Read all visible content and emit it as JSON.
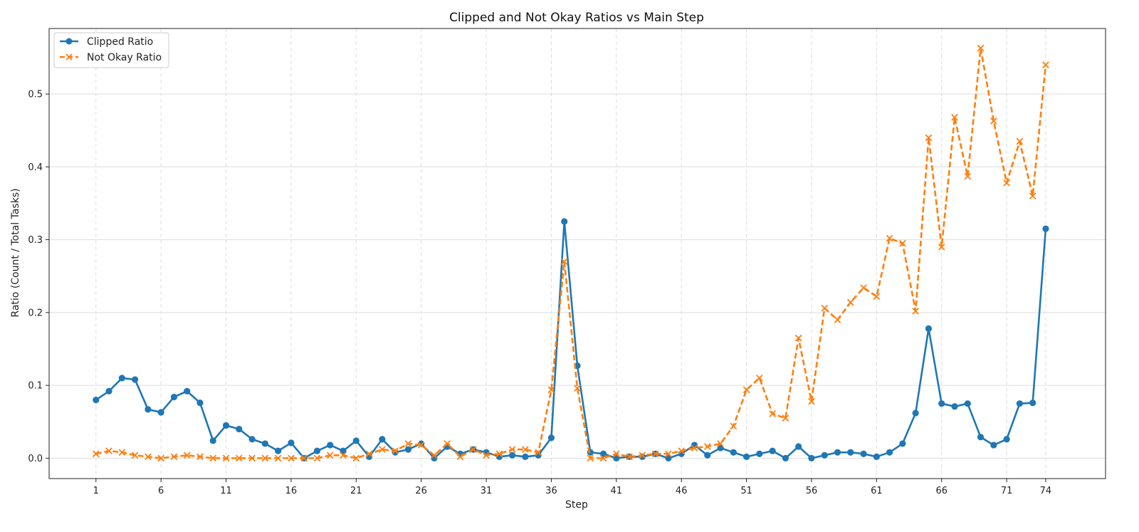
{
  "chart_data": {
    "type": "line",
    "title": "Clipped and Not Okay Ratios vs Main Step",
    "xlabel": "Step",
    "ylabel": "Ratio (Count / Total Tasks)",
    "xlim": [
      -2.6,
      78.6
    ],
    "ylim": [
      -0.028,
      0.59
    ],
    "x_ticks": [
      1,
      6,
      11,
      16,
      21,
      26,
      31,
      36,
      41,
      46,
      51,
      56,
      61,
      66,
      71,
      74
    ],
    "y_ticks": [
      0.0,
      0.1,
      0.2,
      0.3,
      0.4,
      0.5
    ],
    "grid": true,
    "legend_position": "upper-left",
    "x": [
      1,
      2,
      3,
      4,
      5,
      6,
      7,
      8,
      9,
      10,
      11,
      12,
      13,
      14,
      15,
      16,
      17,
      18,
      19,
      20,
      21,
      22,
      23,
      24,
      25,
      26,
      27,
      28,
      29,
      30,
      31,
      32,
      33,
      34,
      35,
      36,
      37,
      38,
      39,
      40,
      41,
      42,
      43,
      44,
      45,
      46,
      47,
      48,
      49,
      50,
      51,
      52,
      53,
      54,
      55,
      56,
      57,
      58,
      59,
      60,
      61,
      62,
      63,
      64,
      65,
      66,
      67,
      68,
      69,
      70,
      71,
      72,
      73,
      74
    ],
    "series": [
      {
        "name": "Clipped Ratio",
        "color": "#1f77b4",
        "marker": "circle",
        "linestyle": "solid",
        "values": [
          0.08,
          0.092,
          0.11,
          0.108,
          0.067,
          0.063,
          0.084,
          0.092,
          0.076,
          0.024,
          0.045,
          0.04,
          0.026,
          0.02,
          0.01,
          0.021,
          0.0,
          0.01,
          0.018,
          0.01,
          0.024,
          0.002,
          0.026,
          0.008,
          0.012,
          0.02,
          0.0,
          0.016,
          0.006,
          0.012,
          0.008,
          0.002,
          0.004,
          0.002,
          0.004,
          0.028,
          0.325,
          0.127,
          0.008,
          0.006,
          0.0,
          0.002,
          0.002,
          0.006,
          0.0,
          0.006,
          0.018,
          0.004,
          0.014,
          0.008,
          0.002,
          0.006,
          0.01,
          0.0,
          0.016,
          0.0,
          0.004,
          0.008,
          0.008,
          0.006,
          0.002,
          0.008,
          0.02,
          0.062,
          0.178,
          0.075,
          0.071,
          0.075,
          0.029,
          0.018,
          0.026,
          0.075,
          0.076,
          0.315
        ]
      },
      {
        "name": "Not Okay Ratio",
        "color": "#ff7f0e",
        "marker": "x",
        "linestyle": "dashed",
        "values": [
          0.006,
          0.01,
          0.008,
          0.004,
          0.002,
          0.0,
          0.002,
          0.004,
          0.002,
          0.0,
          0.0,
          0.0,
          0.0,
          0.0,
          0.0,
          0.0,
          0.0,
          0.0,
          0.004,
          0.004,
          0.0,
          0.006,
          0.012,
          0.01,
          0.02,
          0.018,
          0.004,
          0.02,
          0.002,
          0.012,
          0.004,
          0.006,
          0.012,
          0.012,
          0.008,
          0.094,
          0.27,
          0.096,
          0.0,
          0.0,
          0.006,
          0.002,
          0.004,
          0.006,
          0.006,
          0.01,
          0.014,
          0.016,
          0.02,
          0.044,
          0.094,
          0.11,
          0.061,
          0.055,
          0.165,
          0.078,
          0.206,
          0.19,
          0.214,
          0.234,
          0.222,
          0.302,
          0.295,
          0.202,
          0.44,
          0.29,
          0.468,
          0.387,
          0.563,
          0.463,
          0.378,
          0.435,
          0.36,
          0.54
        ]
      }
    ]
  }
}
